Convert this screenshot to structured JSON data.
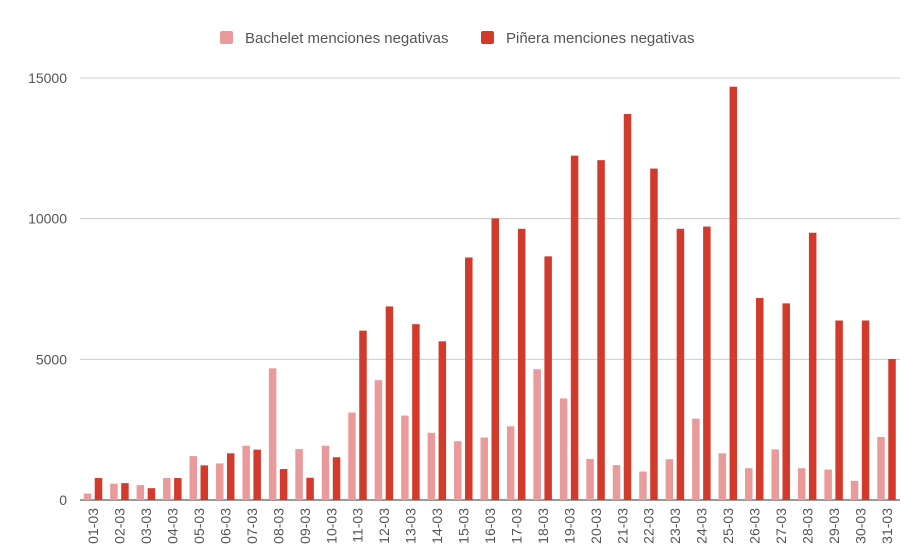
{
  "chart_data": {
    "type": "bar",
    "title": "",
    "xlabel": "",
    "ylabel": "",
    "ylim": [
      0,
      15000
    ],
    "yticks": [
      0,
      5000,
      10000,
      15000
    ],
    "grid": true,
    "legend_position": "top",
    "categories": [
      "01-03",
      "02-03",
      "03-03",
      "04-03",
      "05-03",
      "06-03",
      "07-03",
      "08-03",
      "09-03",
      "10-03",
      "11-03",
      "12-03",
      "13-03",
      "14-03",
      "15-03",
      "16-03",
      "17-03",
      "18-03",
      "19-03",
      "20-03",
      "21-03",
      "22-03",
      "23-03",
      "24-03",
      "25-03",
      "26-03",
      "27-03",
      "28-03",
      "29-03",
      "30-03",
      "31-03"
    ],
    "series": [
      {
        "name": "Bachelet menciones negativas",
        "color": "#e99a9a",
        "values": [
          230,
          580,
          530,
          780,
          1560,
          1300,
          1930,
          4680,
          1810,
          1930,
          3110,
          4260,
          3000,
          2390,
          2090,
          2220,
          2620,
          4650,
          3610,
          1460,
          1240,
          1010,
          1450,
          2890,
          1660,
          1130,
          1800,
          1130,
          1080,
          680,
          2240
        ]
      },
      {
        "name": "Piñera menciones negativas",
        "color": "#d23b2b",
        "values": [
          780,
          600,
          420,
          780,
          1230,
          1660,
          1790,
          1100,
          790,
          1520,
          6020,
          6880,
          6250,
          5640,
          8620,
          10010,
          9640,
          8660,
          12240,
          12080,
          13720,
          11780,
          9640,
          9720,
          14690,
          7180,
          6990,
          9500,
          6380,
          6380,
          5010
        ]
      }
    ]
  }
}
